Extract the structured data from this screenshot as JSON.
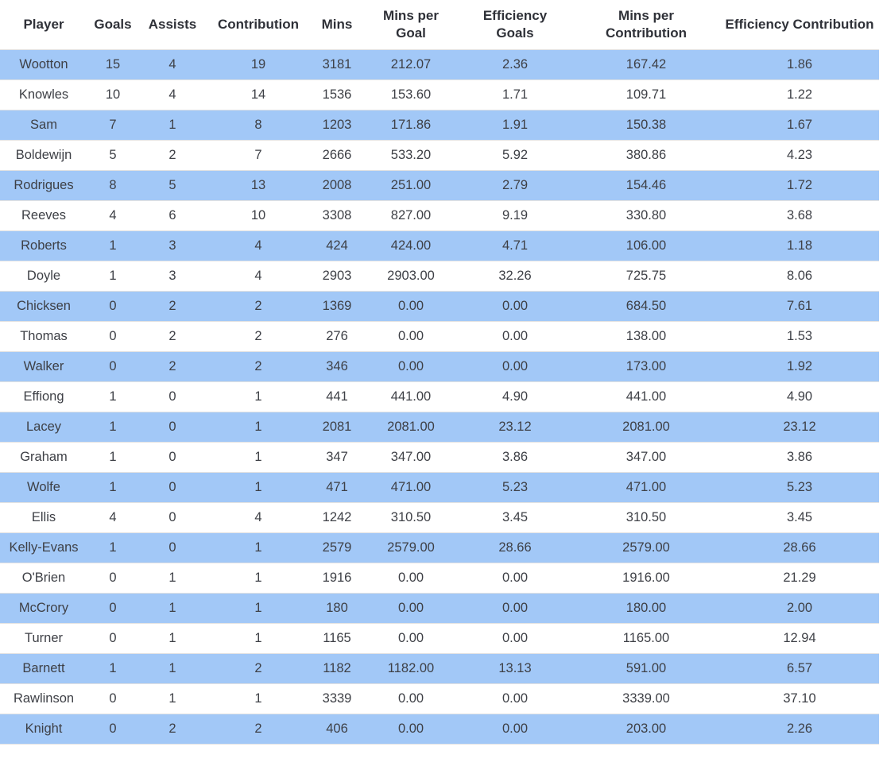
{
  "table": {
    "columns": [
      "Player",
      "Goals",
      "Assists",
      "Contribution",
      "Mins",
      "Mins per Goal",
      "Efficiency Goals",
      "Mins per Contribution",
      "Efficiency Contribution"
    ],
    "rows": [
      [
        "Wootton",
        "15",
        "4",
        "19",
        "3181",
        "212.07",
        "2.36",
        "167.42",
        "1.86"
      ],
      [
        "Knowles",
        "10",
        "4",
        "14",
        "1536",
        "153.60",
        "1.71",
        "109.71",
        "1.22"
      ],
      [
        "Sam",
        "7",
        "1",
        "8",
        "1203",
        "171.86",
        "1.91",
        "150.38",
        "1.67"
      ],
      [
        "Boldewijn",
        "5",
        "2",
        "7",
        "2666",
        "533.20",
        "5.92",
        "380.86",
        "4.23"
      ],
      [
        "Rodrigues",
        "8",
        "5",
        "13",
        "2008",
        "251.00",
        "2.79",
        "154.46",
        "1.72"
      ],
      [
        "Reeves",
        "4",
        "6",
        "10",
        "3308",
        "827.00",
        "9.19",
        "330.80",
        "3.68"
      ],
      [
        "Roberts",
        "1",
        "3",
        "4",
        "424",
        "424.00",
        "4.71",
        "106.00",
        "1.18"
      ],
      [
        "Doyle",
        "1",
        "3",
        "4",
        "2903",
        "2903.00",
        "32.26",
        "725.75",
        "8.06"
      ],
      [
        "Chicksen",
        "0",
        "2",
        "2",
        "1369",
        "0.00",
        "0.00",
        "684.50",
        "7.61"
      ],
      [
        "Thomas",
        "0",
        "2",
        "2",
        "276",
        "0.00",
        "0.00",
        "138.00",
        "1.53"
      ],
      [
        "Walker",
        "0",
        "2",
        "2",
        "346",
        "0.00",
        "0.00",
        "173.00",
        "1.92"
      ],
      [
        "Effiong",
        "1",
        "0",
        "1",
        "441",
        "441.00",
        "4.90",
        "441.00",
        "4.90"
      ],
      [
        "Lacey",
        "1",
        "0",
        "1",
        "2081",
        "2081.00",
        "23.12",
        "2081.00",
        "23.12"
      ],
      [
        "Graham",
        "1",
        "0",
        "1",
        "347",
        "347.00",
        "3.86",
        "347.00",
        "3.86"
      ],
      [
        "Wolfe",
        "1",
        "0",
        "1",
        "471",
        "471.00",
        "5.23",
        "471.00",
        "5.23"
      ],
      [
        "Ellis",
        "4",
        "0",
        "4",
        "1242",
        "310.50",
        "3.45",
        "310.50",
        "3.45"
      ],
      [
        "Kelly-Evans",
        "1",
        "0",
        "1",
        "2579",
        "2579.00",
        "28.66",
        "2579.00",
        "28.66"
      ],
      [
        "O'Brien",
        "0",
        "1",
        "1",
        "1916",
        "0.00",
        "0.00",
        "1916.00",
        "21.29"
      ],
      [
        "McCrory",
        "0",
        "1",
        "1",
        "180",
        "0.00",
        "0.00",
        "180.00",
        "2.00"
      ],
      [
        "Turner",
        "0",
        "1",
        "1",
        "1165",
        "0.00",
        "0.00",
        "1165.00",
        "12.94"
      ],
      [
        "Barnett",
        "1",
        "1",
        "2",
        "1182",
        "1182.00",
        "13.13",
        "591.00",
        "6.57"
      ],
      [
        "Rawlinson",
        "0",
        "1",
        "1",
        "3339",
        "0.00",
        "0.00",
        "3339.00",
        "37.10"
      ],
      [
        "Knight",
        "0",
        "2",
        "2",
        "406",
        "0.00",
        "0.00",
        "203.00",
        "2.26"
      ]
    ]
  },
  "colors": {
    "stripe_blue": "#a2c8f7",
    "header_text": "#2f3138",
    "body_text": "#3e4046",
    "row_border": "#e2e2e2",
    "background": "#ffffff"
  }
}
